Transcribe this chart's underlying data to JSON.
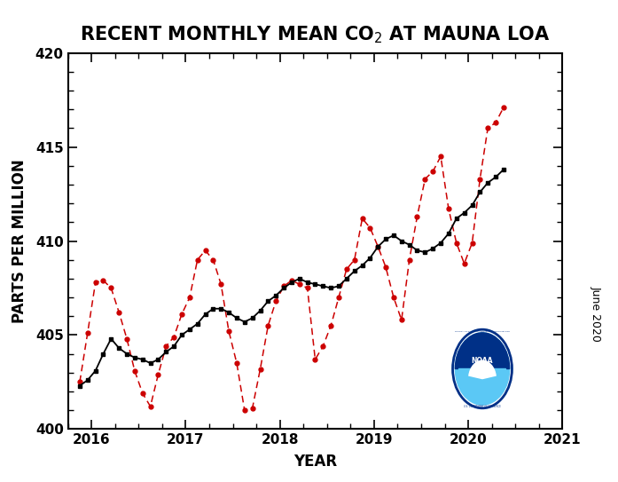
{
  "title": "RECENT MONTHLY MEAN CO$_2$ AT MAUNA LOA",
  "xlabel": "YEAR",
  "ylabel": "PARTS PER MILLION",
  "xlim": [
    2015.75,
    2021.0
  ],
  "ylim": [
    400,
    420
  ],
  "yticks": [
    400,
    405,
    410,
    415,
    420
  ],
  "xticks": [
    2016,
    2017,
    2018,
    2019,
    2020,
    2021
  ],
  "date_label": "June 2020",
  "black_x": [
    2015.875,
    2015.958,
    2016.042,
    2016.125,
    2016.208,
    2016.292,
    2016.375,
    2016.458,
    2016.542,
    2016.625,
    2016.708,
    2016.792,
    2016.875,
    2016.958,
    2017.042,
    2017.125,
    2017.208,
    2017.292,
    2017.375,
    2017.458,
    2017.542,
    2017.625,
    2017.708,
    2017.792,
    2017.875,
    2017.958,
    2018.042,
    2018.125,
    2018.208,
    2018.292,
    2018.375,
    2018.458,
    2018.542,
    2018.625,
    2018.708,
    2018.792,
    2018.875,
    2018.958,
    2019.042,
    2019.125,
    2019.208,
    2019.292,
    2019.375,
    2019.458,
    2019.542,
    2019.625,
    2019.708,
    2019.792,
    2019.875,
    2019.958,
    2020.042,
    2020.125,
    2020.208,
    2020.292,
    2020.375
  ],
  "black_y": [
    402.3,
    402.6,
    403.1,
    404.0,
    404.8,
    404.3,
    404.0,
    403.8,
    403.7,
    403.5,
    403.7,
    404.1,
    404.4,
    405.0,
    405.3,
    405.6,
    406.1,
    406.4,
    406.4,
    406.2,
    405.9,
    405.7,
    405.9,
    406.3,
    406.8,
    407.1,
    407.5,
    407.8,
    408.0,
    407.8,
    407.7,
    407.6,
    407.5,
    407.6,
    408.0,
    408.4,
    408.7,
    409.1,
    409.7,
    410.1,
    410.3,
    410.0,
    409.8,
    409.5,
    409.4,
    409.6,
    409.9,
    410.4,
    411.2,
    411.5,
    411.9,
    412.6,
    413.1,
    413.4,
    413.8
  ],
  "red_x": [
    2015.875,
    2015.958,
    2016.042,
    2016.125,
    2016.208,
    2016.292,
    2016.375,
    2016.458,
    2016.542,
    2016.625,
    2016.708,
    2016.792,
    2016.875,
    2016.958,
    2017.042,
    2017.125,
    2017.208,
    2017.292,
    2017.375,
    2017.458,
    2017.542,
    2017.625,
    2017.708,
    2017.792,
    2017.875,
    2017.958,
    2018.042,
    2018.125,
    2018.208,
    2018.292,
    2018.375,
    2018.458,
    2018.542,
    2018.625,
    2018.708,
    2018.792,
    2018.875,
    2018.958,
    2019.042,
    2019.125,
    2019.208,
    2019.292,
    2019.375,
    2019.458,
    2019.542,
    2019.625,
    2019.708,
    2019.792,
    2019.875,
    2019.958,
    2020.042,
    2020.125,
    2020.208,
    2020.292,
    2020.375
  ],
  "red_y": [
    402.5,
    405.1,
    407.8,
    407.9,
    407.5,
    406.2,
    404.8,
    403.1,
    401.9,
    401.2,
    402.9,
    404.4,
    404.9,
    406.1,
    407.0,
    409.0,
    409.5,
    409.0,
    407.7,
    405.2,
    403.5,
    401.0,
    401.1,
    403.2,
    405.5,
    406.8,
    407.6,
    407.9,
    407.7,
    407.5,
    403.7,
    404.4,
    405.5,
    407.0,
    408.5,
    409.0,
    411.2,
    410.7,
    409.7,
    408.6,
    407.0,
    405.8,
    409.0,
    411.3,
    413.3,
    413.7,
    414.5,
    411.7,
    409.9,
    408.8,
    409.9,
    413.3,
    416.0,
    416.3,
    417.1
  ],
  "black_color": "#000000",
  "red_color": "#cc0000",
  "bg_color": "#ffffff",
  "title_fontsize": 15,
  "axis_label_fontsize": 12,
  "tick_fontsize": 11
}
